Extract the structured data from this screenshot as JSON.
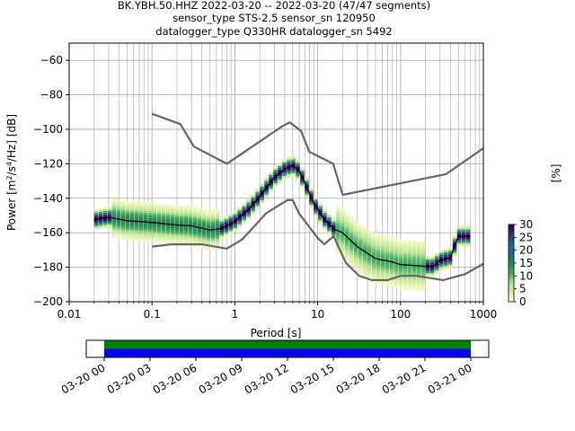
{
  "title_lines": [
    "BK.YBH.50.HHZ   2022-03-20 -- 2022-03-20  (47/47 segments)",
    "sensor_type STS-2.5 sensor_sn 120950",
    "datalogger_type Q330HR datalogger_sn 5492"
  ],
  "chart_data": [
    {
      "type": "heatmap",
      "description_type": "probabilistic power spectral density",
      "xlabel": "Period [s]",
      "ylabel": "Power [m²/s⁴/Hz] [dB]",
      "ylabel_parts": {
        "before": "Power [m",
        "sup1": "2",
        "mid": "/s",
        "sup2": "4",
        "after": "/Hz] [dB]"
      },
      "xscale": "log",
      "xlim": [
        0.01,
        1000
      ],
      "ylim": [
        -200,
        -50
      ],
      "xtick_labels": [
        "0.01",
        "0.1",
        "1",
        "10",
        "100",
        "1000"
      ],
      "xticks": [
        0.01,
        0.1,
        1,
        10,
        100,
        1000
      ],
      "yticks": [
        -200,
        -180,
        -160,
        -140,
        -120,
        -100,
        -80,
        -60
      ],
      "ytick_labels": [
        "−200",
        "−180",
        "−160",
        "−140",
        "−120",
        "−100",
        "−80",
        "−60"
      ],
      "grid": true,
      "colorbar": {
        "label": "[%]",
        "range": [
          0,
          30
        ],
        "ticks": [
          0,
          5,
          10,
          15,
          20,
          25,
          30
        ],
        "tick_labels": [
          "0",
          "5",
          "10",
          "15",
          "20",
          "25",
          "30"
        ],
        "colors": [
          "#ffffe5",
          "#d9f0a3",
          "#addd8e",
          "#41ab5d",
          "#238b45",
          "#1d6f83",
          "#225ea8",
          "#3a2f79",
          "#2d004b"
        ]
      },
      "series": [
        {
          "name": "",
          "role": "new high noise model",
          "color": "#666666",
          "points": [
            [
              0.1,
              -91
            ],
            [
              0.22,
              -97
            ],
            [
              0.32,
              -110
            ],
            [
              0.8,
              -120
            ],
            [
              3.8,
              -98
            ],
            [
              4.6,
              -96
            ],
            [
              6.3,
              -101
            ],
            [
              7.9,
              -113
            ],
            [
              15.4,
              -120
            ],
            [
              20,
              -138
            ],
            [
              354.8,
              -126
            ],
            [
              1000,
              -111
            ]
          ]
        },
        {
          "name": "",
          "role": "new low noise model",
          "color": "#666666",
          "points": [
            [
              0.1,
              -168
            ],
            [
              0.17,
              -166.7
            ],
            [
              0.4,
              -166.7
            ],
            [
              0.8,
              -169.2
            ],
            [
              1.24,
              -163.7
            ],
            [
              2.4,
              -148.6
            ],
            [
              4.3,
              -141.1
            ],
            [
              5.0,
              -141.1
            ],
            [
              6.0,
              -149
            ],
            [
              10.0,
              -163
            ],
            [
              12,
              -166.7
            ],
            [
              15.6,
              -162
            ],
            [
              21.9,
              -177.5
            ],
            [
              31.6,
              -185
            ],
            [
              45,
              -187.5
            ],
            [
              70,
              -187.5
            ],
            [
              101,
              -185
            ],
            [
              154,
              -185
            ],
            [
              328,
              -187.5
            ],
            [
              600,
              -184
            ],
            [
              1000,
              -178
            ]
          ]
        },
        {
          "name": "",
          "role": "mean PSD",
          "color": "#000000",
          "points": [
            [
              0.02,
              -152.5
            ],
            [
              0.03,
              -151
            ],
            [
              0.05,
              -153
            ],
            [
              0.1,
              -154
            ],
            [
              0.2,
              -155.5
            ],
            [
              0.3,
              -156
            ],
            [
              0.5,
              -158.5
            ],
            [
              0.7,
              -157.5
            ],
            [
              1.0,
              -153.5
            ],
            [
              1.5,
              -146
            ],
            [
              2.0,
              -139
            ],
            [
              3.0,
              -128
            ],
            [
              4.0,
              -123
            ],
            [
              5.0,
              -121
            ],
            [
              6.0,
              -124
            ],
            [
              7.0,
              -131
            ],
            [
              9.0,
              -143
            ],
            [
              12,
              -152
            ],
            [
              16,
              -158
            ],
            [
              20,
              -160
            ],
            [
              30,
              -168
            ],
            [
              50,
              -175
            ],
            [
              80,
              -177
            ],
            [
              100,
              -178.5
            ],
            [
              150,
              -179
            ],
            [
              200,
              -179.5
            ],
            [
              250,
              -179.5
            ],
            [
              300,
              -176
            ],
            [
              400,
              -174.5
            ],
            [
              500,
              -162
            ],
            [
              700,
              -162
            ]
          ]
        }
      ]
    },
    {
      "type": "timeline",
      "description_type": "data coverage",
      "xtick_labels": [
        "03-20 00",
        "03-20 03",
        "03-20 06",
        "03-20 09",
        "03-20 12",
        "03-20 15",
        "03-20 18",
        "03-20 21",
        "03-21 00"
      ],
      "bars": [
        {
          "label": "",
          "color": "#008000",
          "start": "03-20 00",
          "end": "03-21 00"
        },
        {
          "label": "",
          "color": "#0000ff",
          "start": "03-20 00",
          "end": "03-21 00"
        }
      ]
    }
  ]
}
